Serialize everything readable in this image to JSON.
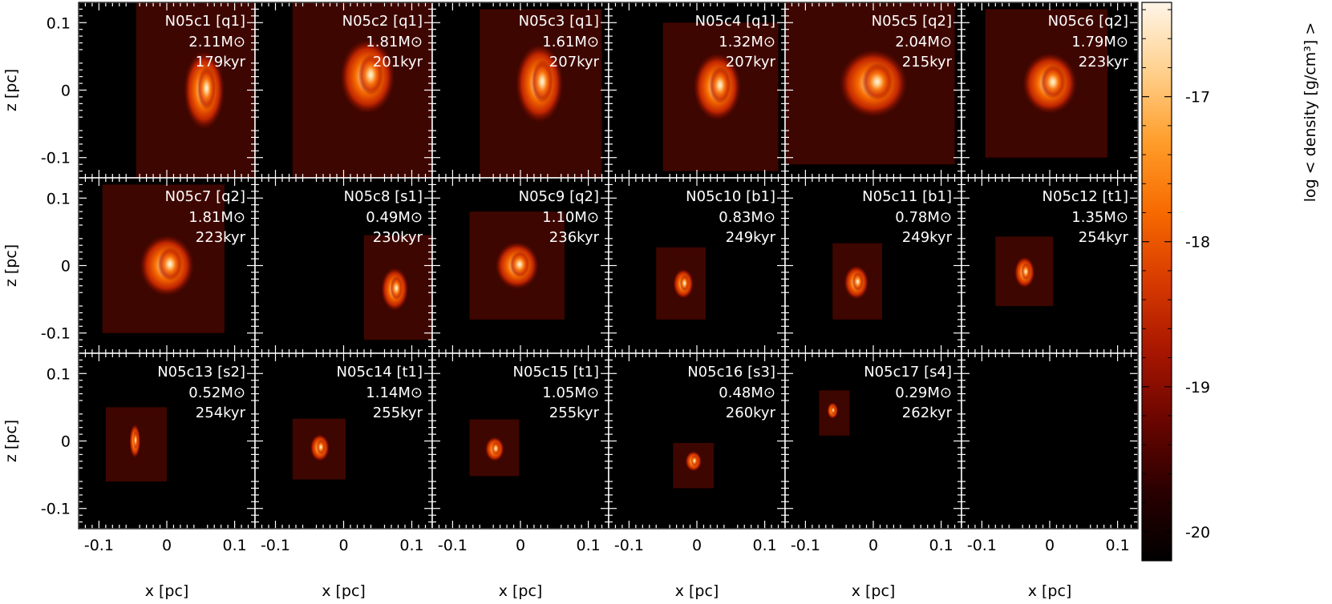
{
  "chart_data": {
    "type": "heatmap",
    "panel_grid": {
      "rows": 3,
      "cols": 6
    },
    "xlabel": "x [pc]",
    "ylabel": "z [pc]",
    "xlim": [
      -0.13,
      0.13
    ],
    "ylim": [
      -0.13,
      0.13
    ],
    "x_ticks": [
      {
        "value": -0.1,
        "label": "-0.1"
      },
      {
        "value": 0,
        "label": "0"
      },
      {
        "value": 0.1,
        "label": "0.1"
      }
    ],
    "y_ticks": [
      {
        "value": 0.1,
        "label": "0.1"
      },
      {
        "value": 0,
        "label": "0"
      },
      {
        "value": -0.1,
        "label": "-0.1"
      }
    ],
    "colorbar": {
      "label": "log < density [g/cm³] >",
      "range": [
        -20.2,
        -16.35
      ],
      "ticks": [
        {
          "value": -17,
          "label": "-17"
        },
        {
          "value": -18,
          "label": "-18"
        },
        {
          "value": -19,
          "label": "-19"
        },
        {
          "value": -20,
          "label": "-20"
        }
      ],
      "colors": [
        "#000000",
        "#2a0000",
        "#6a0500",
        "#a81600",
        "#d83a00",
        "#f76a00",
        "#ff9d2a",
        "#ffd08c",
        "#fff5e8"
      ]
    },
    "panels": [
      {
        "name": "N05c1 [q1]",
        "mass": "2.11M⊙",
        "age": "179kyr",
        "box": [
          -0.045,
          0.13,
          -0.13,
          0.13
        ],
        "core": [
          0.055,
          0.0,
          0.03,
          0.058
        ]
      },
      {
        "name": "N05c2 [q1]",
        "mass": "1.81M⊙",
        "age": "201kyr",
        "box": [
          -0.075,
          0.13,
          -0.13,
          0.13
        ],
        "core": [
          0.035,
          0.02,
          0.04,
          0.055
        ]
      },
      {
        "name": "N05c3 [q1]",
        "mass": "1.61M⊙",
        "age": "207kyr",
        "box": [
          -0.06,
          0.12,
          -0.13,
          0.12
        ],
        "core": [
          0.028,
          0.01,
          0.035,
          0.058
        ]
      },
      {
        "name": "N05c4 [q1]",
        "mass": "1.32M⊙",
        "age": "207kyr",
        "box": [
          -0.05,
          0.12,
          -0.12,
          0.1
        ],
        "core": [
          0.03,
          0.005,
          0.035,
          0.05
        ]
      },
      {
        "name": "N05c5 [q2]",
        "mass": "2.04M⊙",
        "age": "215kyr",
        "box": [
          -0.13,
          0.12,
          -0.11,
          0.13
        ],
        "core": [
          0.0,
          0.01,
          0.05,
          0.05
        ]
      },
      {
        "name": "N05c6 [q2]",
        "mass": "1.79M⊙",
        "age": "223kyr",
        "box": [
          -0.095,
          0.085,
          -0.1,
          0.12
        ],
        "core": [
          0.0,
          0.01,
          0.04,
          0.045
        ]
      },
      {
        "name": "N05c7 [q2]",
        "mass": "1.81M⊙",
        "age": "223kyr",
        "box": [
          -0.095,
          0.085,
          -0.1,
          0.12
        ],
        "core": [
          0.0,
          0.0,
          0.04,
          0.045
        ]
      },
      {
        "name": "N05c8 [s1]",
        "mass": "0.49M⊙",
        "age": "230kyr",
        "box": [
          0.03,
          0.13,
          -0.11,
          0.045
        ],
        "core": [
          0.075,
          -0.035,
          0.02,
          0.032
        ]
      },
      {
        "name": "N05c9 [q2]",
        "mass": "1.10M⊙",
        "age": "236kyr",
        "box": [
          -0.075,
          0.065,
          -0.08,
          0.08
        ],
        "core": [
          -0.005,
          0.0,
          0.032,
          0.035
        ]
      },
      {
        "name": "N05c10 [b1]",
        "mass": "0.83M⊙",
        "age": "249kyr",
        "box": [
          -0.06,
          0.013,
          -0.08,
          0.027
        ],
        "core": [
          -0.02,
          -0.027,
          0.015,
          0.022
        ]
      },
      {
        "name": "N05c11 [b1]",
        "mass": "0.78M⊙",
        "age": "249kyr",
        "box": [
          -0.06,
          0.013,
          -0.08,
          0.033
        ],
        "core": [
          -0.025,
          -0.025,
          0.018,
          0.025
        ]
      },
      {
        "name": "N05c12 [t1]",
        "mass": "1.35M⊙",
        "age": "254kyr",
        "box": [
          -0.08,
          0.005,
          -0.06,
          0.043
        ],
        "core": [
          -0.037,
          -0.01,
          0.015,
          0.023
        ]
      },
      {
        "name": "N05c13 [s2]",
        "mass": "0.52M⊙",
        "age": "254kyr",
        "box": [
          -0.09,
          0.0,
          -0.06,
          0.05
        ],
        "core": [
          -0.047,
          0.0,
          0.008,
          0.025
        ]
      },
      {
        "name": "N05c14 [t1]",
        "mass": "1.14M⊙",
        "age": "255kyr",
        "box": [
          -0.075,
          0.003,
          -0.057,
          0.033
        ],
        "core": [
          -0.035,
          -0.01,
          0.014,
          0.02
        ]
      },
      {
        "name": "N05c15 [t1]",
        "mass": "1.05M⊙",
        "age": "255kyr",
        "box": [
          -0.075,
          -0.002,
          -0.052,
          0.032
        ],
        "core": [
          -0.038,
          -0.012,
          0.014,
          0.018
        ]
      },
      {
        "name": "N05c16 [s3]",
        "mass": "0.48M⊙",
        "age": "260kyr",
        "box": [
          -0.035,
          0.025,
          -0.07,
          -0.003
        ],
        "core": [
          -0.005,
          -0.03,
          0.012,
          0.015
        ]
      },
      {
        "name": "N05c17 [s4]",
        "mass": "0.29M⊙",
        "age": "262kyr",
        "box": [
          -0.08,
          -0.035,
          0.008,
          0.075
        ],
        "core": [
          -0.06,
          0.045,
          0.008,
          0.012
        ]
      },
      {
        "name": "",
        "mass": "",
        "age": "",
        "box": null,
        "core": null
      }
    ]
  }
}
